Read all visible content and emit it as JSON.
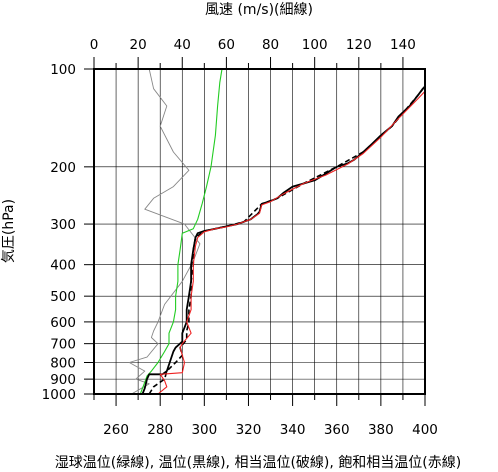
{
  "chart_data": {
    "type": "line",
    "title": "",
    "xlabel_top": "風速 (m/s)(細線)",
    "xlabel_bottom": "湿球温位(緑線), 温位(黒線), 相当温位(破線), 飽和相当温位(赤線)",
    "ylabel": "気圧(hPa)",
    "y_scale": "log",
    "y_inverted": true,
    "ylim": [
      1000,
      100
    ],
    "y_ticks": [
      100,
      200,
      300,
      400,
      500,
      600,
      700,
      800,
      900,
      1000
    ],
    "x_bottom_lim": [
      250,
      400
    ],
    "x_bottom_ticks": [
      260,
      280,
      300,
      320,
      340,
      360,
      380,
      400
    ],
    "x_top_lim": [
      0,
      150
    ],
    "x_top_ticks": [
      0,
      20,
      40,
      60,
      80,
      100,
      120,
      140
    ],
    "grid": true,
    "colors": {
      "wet_bulb": "#22cc22",
      "potential": "#000000",
      "equivalent": "#000000",
      "saturated_equivalent": "#ee2222",
      "wind": "#888888"
    },
    "series": [
      {
        "key": "wind",
        "axis": "top",
        "style": "thin",
        "points": [
          [
            17,
            1000
          ],
          [
            25,
            930
          ],
          [
            19,
            900
          ],
          [
            23,
            850
          ],
          [
            16,
            800
          ],
          [
            24,
            770
          ],
          [
            29,
            700
          ],
          [
            26,
            670
          ],
          [
            27,
            640
          ],
          [
            29,
            600
          ],
          [
            32,
            530
          ],
          [
            40,
            450
          ],
          [
            45,
            390
          ],
          [
            48,
            345
          ],
          [
            41,
            300
          ],
          [
            23,
            270
          ],
          [
            27,
            250
          ],
          [
            36,
            230
          ],
          [
            43,
            205
          ],
          [
            36,
            180
          ],
          [
            30,
            150
          ],
          [
            33,
            130
          ],
          [
            27,
            115
          ],
          [
            25,
            100
          ]
        ]
      },
      {
        "key": "wet_bulb",
        "axis": "bottom",
        "style": "solid",
        "points": [
          [
            271,
            1000
          ],
          [
            272,
            960
          ],
          [
            273,
            920
          ],
          [
            274,
            880
          ],
          [
            276,
            850
          ],
          [
            279,
            800
          ],
          [
            282,
            740
          ],
          [
            284,
            700
          ],
          [
            284,
            650
          ],
          [
            286,
            600
          ],
          [
            287,
            550
          ],
          [
            287,
            500
          ],
          [
            288,
            450
          ],
          [
            288,
            400
          ],
          [
            289,
            360
          ],
          [
            290,
            320
          ],
          [
            295,
            310
          ],
          [
            297,
            290
          ],
          [
            299,
            260
          ],
          [
            301,
            230
          ],
          [
            303,
            200
          ],
          [
            305,
            160
          ],
          [
            306,
            130
          ],
          [
            307,
            110
          ],
          [
            308,
            100
          ]
        ]
      },
      {
        "key": "potential",
        "axis": "bottom",
        "style": "solid",
        "points": [
          [
            272,
            1000
          ],
          [
            273,
            960
          ],
          [
            274,
            900
          ],
          [
            275,
            870
          ],
          [
            281,
            870
          ],
          [
            283,
            850
          ],
          [
            286,
            740
          ],
          [
            287,
            720
          ],
          [
            290,
            690
          ],
          [
            290,
            650
          ],
          [
            292,
            600
          ],
          [
            292,
            550
          ],
          [
            293,
            500
          ],
          [
            294,
            450
          ],
          [
            294,
            400
          ],
          [
            295,
            360
          ],
          [
            296,
            330
          ],
          [
            297,
            320
          ],
          [
            300,
            315
          ],
          [
            305,
            310
          ],
          [
            310,
            305
          ],
          [
            315,
            300
          ],
          [
            318,
            295
          ],
          [
            321,
            290
          ],
          [
            324,
            280
          ],
          [
            325,
            275
          ],
          [
            326,
            260
          ],
          [
            330,
            255
          ],
          [
            333,
            250
          ],
          [
            336,
            240
          ],
          [
            340,
            230
          ],
          [
            345,
            225
          ],
          [
            350,
            220
          ],
          [
            355,
            210
          ],
          [
            360,
            200
          ],
          [
            365,
            195
          ],
          [
            368,
            190
          ],
          [
            372,
            180
          ],
          [
            376,
            170
          ],
          [
            380,
            160
          ],
          [
            385,
            150
          ],
          [
            388,
            140
          ],
          [
            393,
            130
          ],
          [
            397,
            120
          ],
          [
            399,
            115
          ],
          [
            400,
            113
          ]
        ]
      },
      {
        "key": "equivalent",
        "axis": "bottom",
        "style": "dashed",
        "points": [
          [
            275,
            1000
          ],
          [
            277,
            950
          ],
          [
            282,
            900
          ],
          [
            283,
            850
          ],
          [
            287,
            800
          ],
          [
            290,
            760
          ],
          [
            289,
            720
          ],
          [
            292,
            680
          ],
          [
            292,
            640
          ],
          [
            293,
            600
          ],
          [
            293,
            550
          ],
          [
            294,
            500
          ],
          [
            294,
            450
          ],
          [
            295,
            400
          ],
          [
            295,
            360
          ],
          [
            296,
            330
          ],
          [
            300,
            315
          ],
          [
            310,
            305
          ],
          [
            318,
            295
          ],
          [
            326,
            260
          ],
          [
            333,
            250
          ],
          [
            345,
            225
          ],
          [
            360,
            200
          ],
          [
            372,
            180
          ],
          [
            385,
            150
          ],
          [
            397,
            120
          ],
          [
            400,
            113
          ]
        ]
      },
      {
        "key": "saturated_equivalent",
        "axis": "bottom",
        "style": "solid",
        "points": [
          [
            279,
            1000
          ],
          [
            283,
            950
          ],
          [
            282,
            910
          ],
          [
            280,
            870
          ],
          [
            290,
            860
          ],
          [
            291,
            800
          ],
          [
            290,
            760
          ],
          [
            289,
            720
          ],
          [
            290,
            700
          ],
          [
            294,
            650
          ],
          [
            292,
            600
          ],
          [
            294,
            550
          ],
          [
            294,
            500
          ],
          [
            295,
            450
          ],
          [
            295,
            400
          ],
          [
            296,
            350
          ],
          [
            297,
            330
          ],
          [
            300,
            317
          ],
          [
            305,
            310
          ],
          [
            310,
            306
          ],
          [
            315,
            300
          ],
          [
            321,
            290
          ],
          [
            325,
            278
          ],
          [
            326,
            262
          ],
          [
            330,
            256
          ],
          [
            336,
            242
          ],
          [
            345,
            225
          ],
          [
            355,
            212
          ],
          [
            365,
            196
          ],
          [
            372,
            182
          ],
          [
            380,
            162
          ],
          [
            388,
            142
          ],
          [
            397,
            123
          ],
          [
            400,
            117
          ]
        ]
      }
    ]
  }
}
